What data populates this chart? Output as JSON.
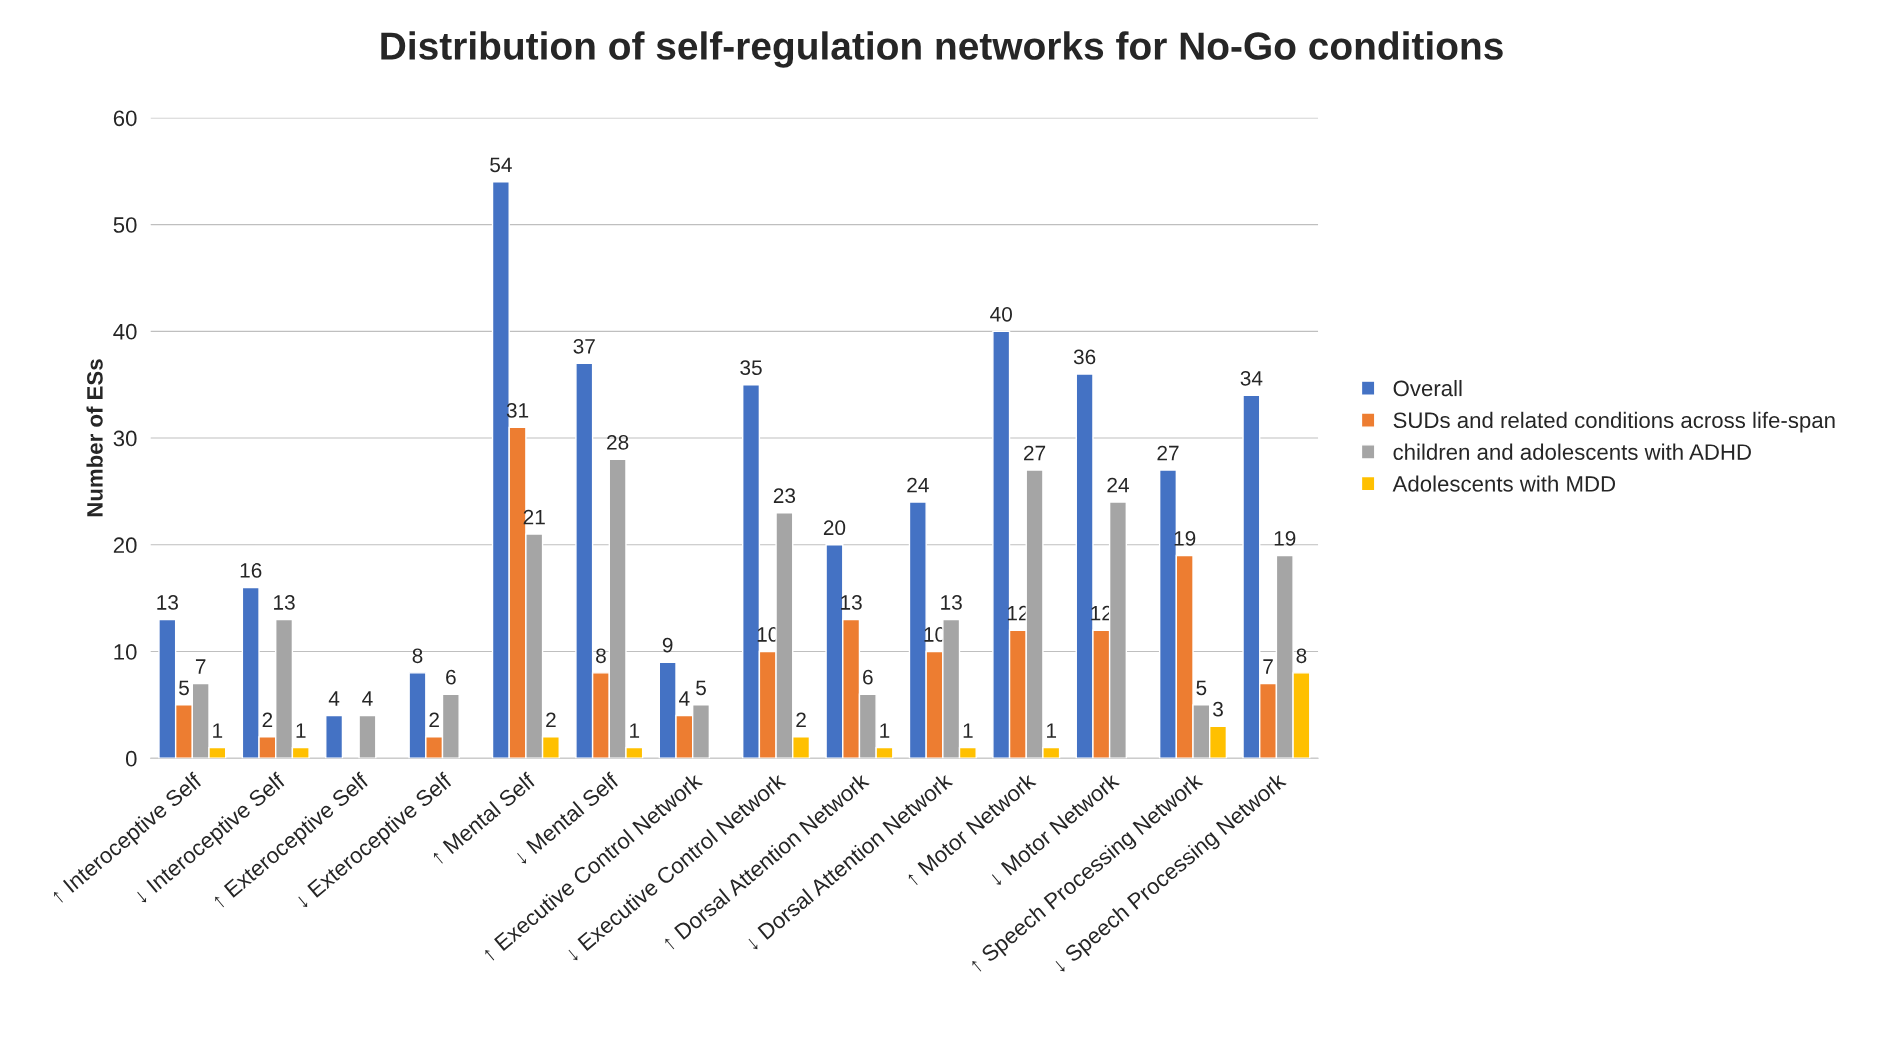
{
  "chart_data": {
    "type": "bar",
    "title": "Distribution of self-regulation networks for No-Go conditions",
    "ylabel": "Number of ESs",
    "categories": [
      "↑ Interoceptive Self",
      "↓ Interoceptive Self",
      "↑ Exteroceptive Self",
      "↓ Exteroceptive Self",
      "↑ Mental Self",
      "↓ Mental Self",
      "↑ Executive Control Network",
      "↓ Executive Control Network",
      "↑ Dorsal Attention Network",
      "↓ Dorsal Attention Network",
      "↑ Motor Network",
      "↓ Motor Network",
      "↑ Speech Processing Network",
      "↓ Speech Processing Network"
    ],
    "series": [
      {
        "name": "Overall",
        "color": "#4472c4",
        "values": [
          13,
          16,
          4,
          8,
          54,
          37,
          9,
          35,
          20,
          24,
          40,
          36,
          27,
          34
        ]
      },
      {
        "name": "SUDs and related conditions across life-span",
        "color": "#ed7d31",
        "values": [
          5,
          2,
          null,
          2,
          31,
          8,
          4,
          10,
          13,
          10,
          12,
          12,
          19,
          7
        ]
      },
      {
        "name": "children and adolescents with ADHD",
        "color": "#a5a5a5",
        "values": [
          7,
          13,
          4,
          6,
          21,
          28,
          5,
          23,
          6,
          13,
          27,
          24,
          5,
          19
        ]
      },
      {
        "name": "Adolescents with MDD",
        "color": "#ffc000",
        "values": [
          1,
          1,
          null,
          null,
          2,
          1,
          null,
          2,
          1,
          1,
          1,
          null,
          3,
          8
        ]
      }
    ],
    "ylim": [
      0,
      60
    ],
    "yticks": [
      0,
      10,
      20,
      30,
      40,
      50,
      60
    ],
    "grid": "y",
    "legend": "right",
    "data_labels": true
  }
}
